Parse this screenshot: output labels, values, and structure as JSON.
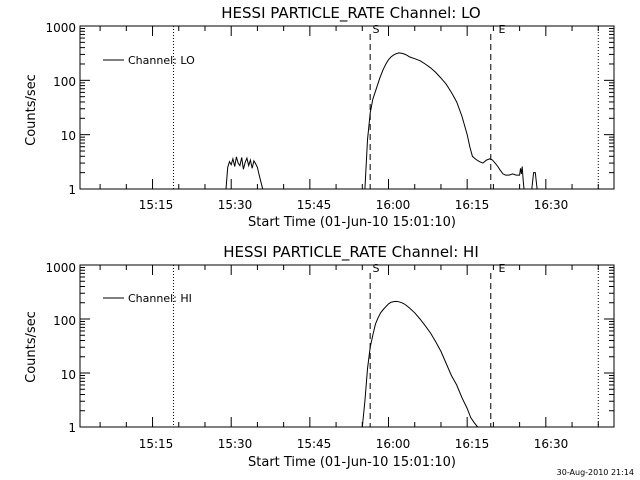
{
  "timestamp": "30-Aug-2010 21:14",
  "chart_data": [
    {
      "type": "line",
      "title": "HESSI PARTICLE_RATE Channel: LO",
      "xlabel": "Start Time (01-Jun-10 15:01:10)",
      "ylabel": "Counts/sec",
      "legend": "Channel: LO",
      "legend_placement": "top-left",
      "y_scale": "log",
      "ylim": [
        1,
        1000
      ],
      "xlim": [
        "15:01:10",
        "16:43:00"
      ],
      "x_ticks": [
        "15:15",
        "15:30",
        "15:45",
        "16:00",
        "16:15",
        "16:30"
      ],
      "y_ticks": [
        "1",
        "10",
        "100",
        "1000"
      ],
      "markers": {
        "dotted": [
          "15:19:00",
          "16:40:00"
        ],
        "dashed": [
          {
            "time": "15:56:30",
            "label": "S"
          },
          {
            "time": "16:19:30",
            "label": "E"
          }
        ]
      },
      "x": [
        "15:29:00",
        "15:29:20",
        "15:29:40",
        "15:30:00",
        "15:30:20",
        "15:30:40",
        "15:31:00",
        "15:31:20",
        "15:31:40",
        "15:32:00",
        "15:32:20",
        "15:32:40",
        "15:33:00",
        "15:33:20",
        "15:33:40",
        "15:34:00",
        "15:34:20",
        "15:34:40",
        "15:35:00",
        "15:35:20",
        "15:36:00",
        "15:55:30",
        "15:56:00",
        "15:56:30",
        "15:57:00",
        "15:57:40",
        "15:58:20",
        "15:59:00",
        "15:59:30",
        "16:00:00",
        "16:00:30",
        "16:01:00",
        "16:01:30",
        "16:02:00",
        "16:02:30",
        "16:03:00",
        "16:03:30",
        "16:04:00",
        "16:05:00",
        "16:06:00",
        "16:07:00",
        "16:08:00",
        "16:09:00",
        "16:10:00",
        "16:11:00",
        "16:12:00",
        "16:13:00",
        "16:14:00",
        "16:15:00",
        "16:15:30",
        "16:16:00",
        "16:16:40",
        "16:17:20",
        "16:18:00",
        "16:18:40",
        "16:19:20",
        "16:19:50",
        "16:20:20",
        "16:20:50",
        "16:21:20",
        "16:21:50",
        "16:22:20",
        "16:23:00",
        "16:23:40",
        "16:24:20",
        "16:25:00",
        "16:25:10",
        "16:25:20",
        "16:25:30",
        "16:25:40",
        "16:25:50",
        "16:27:20",
        "16:27:40",
        "16:28:00",
        "16:28:20"
      ],
      "y": [
        1,
        2.5,
        3.2,
        2.8,
        3.6,
        2.6,
        3.9,
        3.0,
        2.7,
        3.8,
        2.3,
        3.1,
        3.7,
        2.7,
        3.4,
        2.4,
        3.3,
        2.9,
        2.5,
        1.8,
        1,
        1,
        8,
        25,
        45,
        70,
        110,
        160,
        200,
        240,
        270,
        295,
        310,
        320,
        315,
        305,
        290,
        270,
        250,
        230,
        200,
        170,
        140,
        110,
        85,
        60,
        40,
        22,
        10,
        6,
        4,
        3.5,
        3.2,
        3.0,
        3.4,
        3.6,
        3.4,
        3.0,
        2.6,
        2.2,
        1.9,
        1.8,
        1.8,
        1.9,
        1.8,
        1.8,
        2.4,
        1.9,
        2.6,
        1.5,
        1,
        1,
        2,
        2,
        1
      ]
    },
    {
      "type": "line",
      "title": "HESSI PARTICLE_RATE Channel: HI",
      "xlabel": "Start Time (01-Jun-10 15:01:10)",
      "ylabel": "Counts/sec",
      "legend": "Channel: HI",
      "legend_placement": "top-left",
      "y_scale": "log",
      "ylim": [
        1,
        1000
      ],
      "xlim": [
        "15:01:10",
        "16:43:00"
      ],
      "x_ticks": [
        "15:15",
        "15:30",
        "15:45",
        "16:00",
        "16:15",
        "16:30"
      ],
      "y_ticks": [
        "1",
        "10",
        "100",
        "1000"
      ],
      "markers": {
        "dotted": [
          "15:19:00",
          "16:40:00"
        ],
        "dashed": [
          {
            "time": "15:56:30",
            "label": "S"
          },
          {
            "time": "16:19:30",
            "label": "E"
          }
        ]
      },
      "x": [
        "15:55:00",
        "15:55:30",
        "15:56:00",
        "15:56:30",
        "15:57:00",
        "15:57:30",
        "15:58:00",
        "15:58:30",
        "15:59:00",
        "15:59:30",
        "16:00:00",
        "16:00:30",
        "16:01:00",
        "16:01:30",
        "16:02:00",
        "16:02:30",
        "16:03:00",
        "16:03:30",
        "16:04:00",
        "16:05:00",
        "16:06:00",
        "16:07:00",
        "16:08:00",
        "16:09:00",
        "16:10:00",
        "16:11:00",
        "16:12:00",
        "16:13:00",
        "16:14:00",
        "16:15:00",
        "16:15:40",
        "16:16:20",
        "16:17:00"
      ],
      "y": [
        1,
        3,
        12,
        30,
        50,
        80,
        105,
        130,
        150,
        170,
        190,
        205,
        210,
        212,
        208,
        200,
        190,
        175,
        160,
        130,
        100,
        75,
        55,
        38,
        25,
        15,
        9,
        6,
        3.5,
        2.2,
        1.5,
        1.2,
        1
      ]
    }
  ]
}
